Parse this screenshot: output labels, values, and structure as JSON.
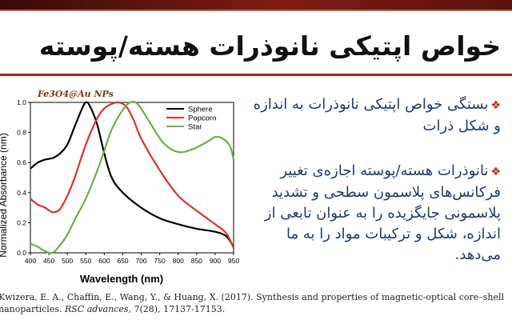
{
  "slide": {
    "title": "خواص اپتیکی نانوذرات هسته/پوسته",
    "bullets": [
      "بستگی خواص اپتیکی نانوذرات به اندازه و شکل ذرات",
      "نانوذرات هسته/پوسته اجازه‌ی تغییر فرکانس‌های پلاسمون سطحی و تشدید پلاسمونی جایگزیده را به عنوان تابعی از اندازه، شکل و ترکیبات مواد را به ما می‌دهد."
    ],
    "bullet_mark": "❖",
    "reference_line1": "Kwizera, E. A., Chaffin, E., Wang, Y., & Huang, X. (2017). Synthesis and properties of  magnetic-optical core–shell",
    "reference_line2_a": "nanoparticles. ",
    "reference_line2_b": "RSC advances",
    "reference_line2_c": ", 7(28), 17137-17153.",
    "colors": {
      "accent_red": "#a6271c",
      "text_blue": "#1c3b6f"
    }
  },
  "chart_data": {
    "type": "line",
    "title": "Fe3O4@Au  NPs",
    "xlabel": "Wavelength (nm)",
    "ylabel": "Normalized Absorbance (nm)",
    "xlim": [
      400,
      950
    ],
    "ylim": [
      0.0,
      1.0
    ],
    "x_ticks": [
      400,
      450,
      500,
      550,
      600,
      650,
      700,
      750,
      800,
      850,
      900,
      950
    ],
    "y_ticks": [
      "0.0",
      "0.2",
      "0.4",
      "0.6",
      "0.8",
      "1.0"
    ],
    "legend_position": "top-right",
    "series": [
      {
        "name": "Sphere",
        "color": "#000000",
        "x": [
          400,
          420,
          440,
          460,
          480,
          500,
          520,
          540,
          550,
          560,
          580,
          600,
          620,
          650,
          700,
          750,
          800,
          850,
          900,
          930,
          950
        ],
        "y": [
          0.56,
          0.6,
          0.62,
          0.63,
          0.66,
          0.72,
          0.84,
          0.96,
          1.0,
          0.98,
          0.86,
          0.66,
          0.5,
          0.4,
          0.3,
          0.23,
          0.19,
          0.16,
          0.14,
          0.11,
          0.04
        ]
      },
      {
        "name": "Popcorn",
        "color": "#d9342b",
        "x": [
          400,
          420,
          440,
          460,
          480,
          500,
          520,
          550,
          580,
          600,
          620,
          640,
          660,
          680,
          700,
          750,
          800,
          850,
          900,
          930,
          950
        ],
        "y": [
          0.36,
          0.32,
          0.3,
          0.27,
          0.29,
          0.38,
          0.5,
          0.72,
          0.89,
          0.96,
          0.99,
          1.0,
          0.97,
          0.88,
          0.76,
          0.55,
          0.38,
          0.28,
          0.19,
          0.13,
          0.03
        ]
      },
      {
        "name": "Star",
        "color": "#6ab04c",
        "x": [
          400,
          420,
          440,
          460,
          480,
          500,
          520,
          550,
          580,
          600,
          620,
          650,
          670,
          690,
          720,
          760,
          800,
          840,
          880,
          900,
          920,
          940,
          950
        ],
        "y": [
          0.06,
          0.04,
          0.01,
          0.0,
          0.05,
          0.12,
          0.22,
          0.36,
          0.54,
          0.68,
          0.82,
          0.95,
          1.0,
          0.99,
          0.88,
          0.73,
          0.67,
          0.69,
          0.74,
          0.77,
          0.76,
          0.71,
          0.62
        ]
      }
    ]
  }
}
